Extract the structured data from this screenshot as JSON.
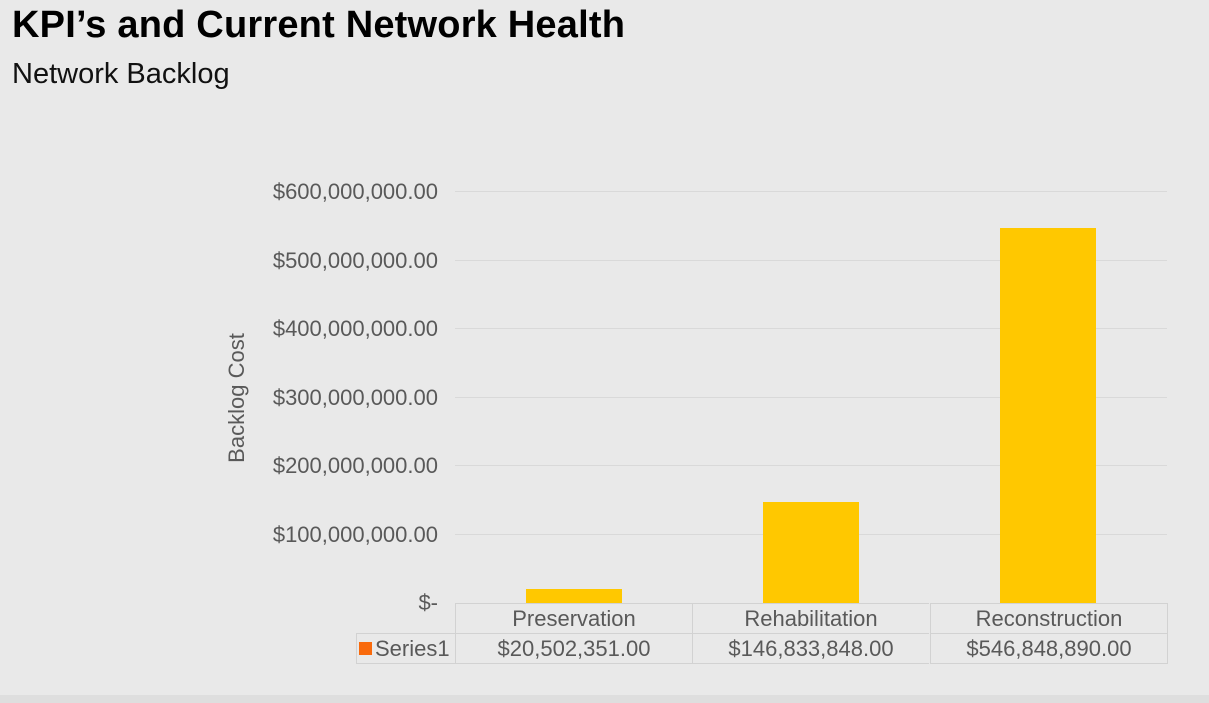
{
  "header": {
    "title": "KPI’s and Current Network Health",
    "subtitle": "Network Backlog"
  },
  "chart_data": {
    "type": "bar",
    "title": "Network Backlog",
    "xlabel": "",
    "ylabel": "Backlog Cost",
    "ylim": [
      0,
      600000000
    ],
    "grid": true,
    "legend_position": "bottom-left-of-data-table",
    "categories": [
      "Preservation",
      "Rehabilitation",
      "Reconstruction"
    ],
    "series": [
      {
        "name": "Series1",
        "values": [
          20502351,
          146833848,
          546848890
        ],
        "formatted_values": [
          "$20,502,351.00",
          "$146,833,848.00",
          "$546,848,890.00"
        ],
        "bar_color": "#FFC800",
        "legend_marker_color": "#F96A0C"
      }
    ],
    "y_ticks": [
      {
        "value": 0,
        "label": "$-"
      },
      {
        "value": 100000000,
        "label": "$100,000,000.00"
      },
      {
        "value": 200000000,
        "label": "$200,000,000.00"
      },
      {
        "value": 300000000,
        "label": "$300,000,000.00"
      },
      {
        "value": 400000000,
        "label": "$400,000,000.00"
      },
      {
        "value": 500000000,
        "label": "$500,000,000.00"
      },
      {
        "value": 600000000,
        "label": "$600,000,000.00"
      }
    ]
  },
  "colors": {
    "background": "#E9E9E9",
    "gridline": "#D9D9D9",
    "axis_text": "#595959",
    "table_border": "#D2D2D2",
    "bar": "#FFC800",
    "legend_marker": "#F96A0C",
    "title_text": "#000000"
  }
}
